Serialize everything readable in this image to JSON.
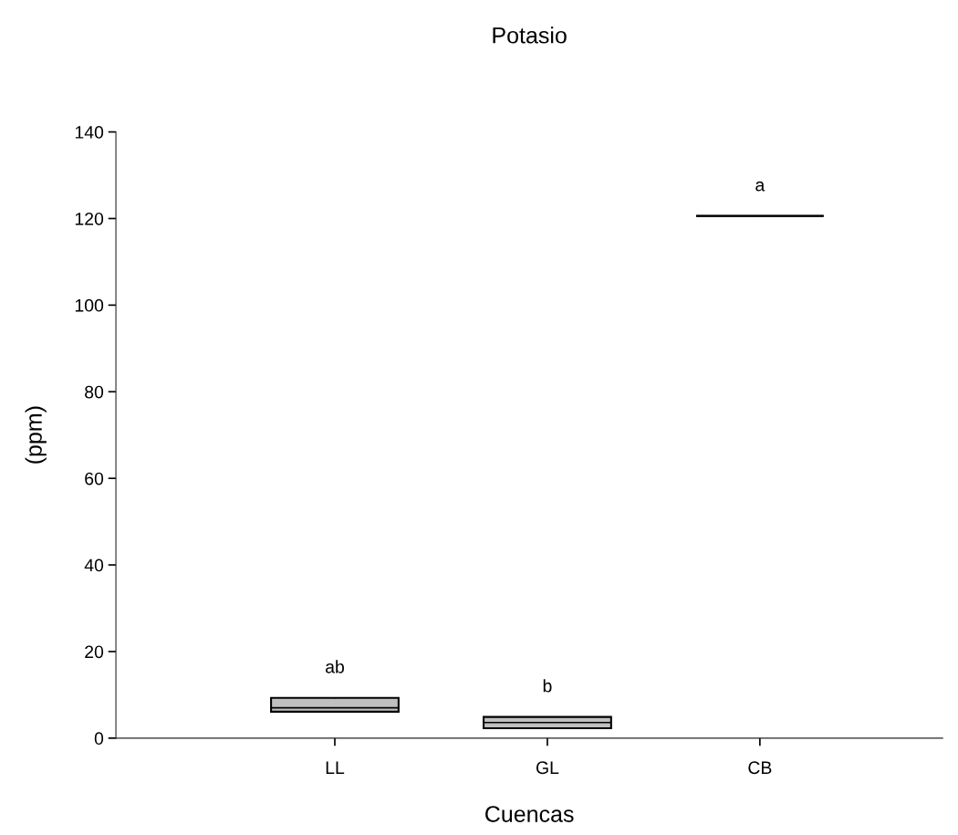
{
  "chart_data": {
    "type": "box",
    "title": "Potasio",
    "xlabel": "Cuencas",
    "ylabel": "(ppm)",
    "categories": [
      "LL",
      "GL",
      "CB"
    ],
    "boxes": [
      {
        "low": 6.1,
        "q1": 6.1,
        "median": 7.0,
        "q3": 9.3,
        "high": 9.3
      },
      {
        "low": 2.3,
        "q1": 2.3,
        "median": 3.6,
        "q3": 4.9,
        "high": 4.9
      },
      {
        "low": 120.6,
        "q1": 120.6,
        "median": 120.6,
        "q3": 120.6,
        "high": 120.6
      }
    ],
    "colors": [
      "#c0c0c0",
      "#c0c0c0",
      "#000000"
    ],
    "ylim": [
      0,
      140
    ],
    "yticks": [
      0,
      20,
      40,
      60,
      80,
      100,
      120,
      140
    ],
    "grid": false,
    "legend": false,
    "annotations": [
      "ab",
      "b",
      "a"
    ]
  }
}
